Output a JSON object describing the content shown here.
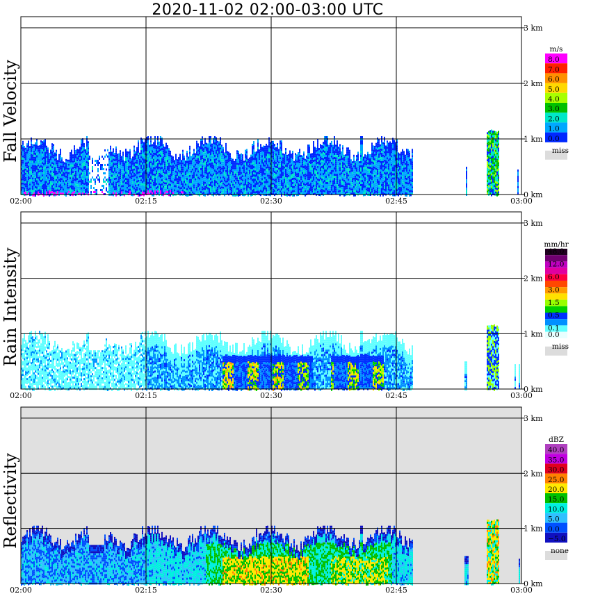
{
  "title": "2020-11-02   02:00-03:00 UTC",
  "x_ticks": [
    "02:00",
    "02:15",
    "02:30",
    "02:45",
    "03:00"
  ],
  "y_ticks": [
    "0 km",
    "1 km",
    "2 km",
    "3 km"
  ],
  "panels": [
    {
      "ylabel": "Fall Velocity",
      "unit": "m/s",
      "scale": [
        "8.0",
        "7.0",
        "6.0",
        "5.0",
        "4.0",
        "3.0",
        "2.0",
        "1.0",
        "0.0"
      ],
      "colors": [
        "#ff00ff",
        "#ff2000",
        "#ff9000",
        "#ffd800",
        "#a8ff00",
        "#00c000",
        "#00e8c8",
        "#00a8ff",
        "#0028ff"
      ],
      "miss_label": "miss",
      "background": "#ffffff"
    },
    {
      "ylabel": "Rain Intensity",
      "unit": "mm/hr",
      "scale": [
        "48.0",
        "",
        "12.0",
        "",
        "6.0",
        "",
        "3.0",
        "",
        "1.5",
        "",
        "0.5",
        "",
        "0.1",
        "0.0"
      ],
      "colors": [
        "#200020",
        "#700070",
        "#c000c0",
        "#e000a0",
        "#ff0040",
        "#ff4800",
        "#ff9a00",
        "#ffe000",
        "#98ff00",
        "#00d000",
        "#0030ff",
        "#0090ff",
        "#60ffff",
        "#e8ffff"
      ],
      "miss_label": "miss",
      "background": "#ffffff"
    },
    {
      "ylabel": "Reflectivity",
      "unit": "dBZ",
      "scale": [
        "40.0",
        "35.0",
        "30.0",
        "25.0",
        "20.0",
        "15.0",
        "10.0",
        "5.0",
        "0.0",
        "−5.0"
      ],
      "colors": [
        "#b040c0",
        "#c000e0",
        "#e00020",
        "#ff8000",
        "#ffe800",
        "#00c000",
        "#00f0e0",
        "#30c0ff",
        "#0050ff",
        "#1010c0"
      ],
      "miss_label": "none",
      "background": "#e0e0e0"
    }
  ],
  "chart_data": {
    "type": "heatmap",
    "title": "2020-11-02   02:00-03:00 UTC",
    "x_range": [
      "02:00",
      "03:00"
    ],
    "y_range_km": [
      0,
      3.2
    ],
    "panels": [
      {
        "name": "Fall Velocity",
        "unit": "m/s",
        "echoes": [
          {
            "t_start": "02:00",
            "t_end": "02:47",
            "top_km": 1.0,
            "typical_value": 1.0
          },
          {
            "t_start": "02:40",
            "t_end": "02:41",
            "top_km": 1.05,
            "typical_value": 2.0
          },
          {
            "t_start": "02:56",
            "t_end": "02:57",
            "top_km": 1.15,
            "typical_value": 3.0
          }
        ]
      },
      {
        "name": "Rain Intensity",
        "unit": "mm/hr",
        "echoes": [
          {
            "t_start": "02:00",
            "t_end": "02:15",
            "top_km": 0.95,
            "typical_value": 0.1
          },
          {
            "t_start": "02:15",
            "t_end": "02:47",
            "top_km": 1.0,
            "typical_value": 0.5
          },
          {
            "t_start": "02:24",
            "t_end": "02:35",
            "top_km": 0.6,
            "typical_value": 3.0
          },
          {
            "t_start": "02:37",
            "t_end": "02:43",
            "top_km": 0.5,
            "typical_value": 1.5
          },
          {
            "t_start": "02:56",
            "t_end": "02:57",
            "top_km": 1.15,
            "typical_value": 1.5
          }
        ]
      },
      {
        "name": "Reflectivity",
        "unit": "dBZ",
        "echoes": [
          {
            "t_start": "02:00",
            "t_end": "02:47",
            "top_km": 1.0,
            "typical_value": 5.0
          },
          {
            "t_start": "02:22",
            "t_end": "02:44",
            "top_km": 0.75,
            "typical_value": 15.0
          },
          {
            "t_start": "02:24",
            "t_end": "02:34",
            "top_km": 0.5,
            "typical_value": 20.0
          },
          {
            "t_start": "02:56",
            "t_end": "02:57",
            "top_km": 1.15,
            "typical_value": 20.0
          }
        ]
      }
    ]
  }
}
